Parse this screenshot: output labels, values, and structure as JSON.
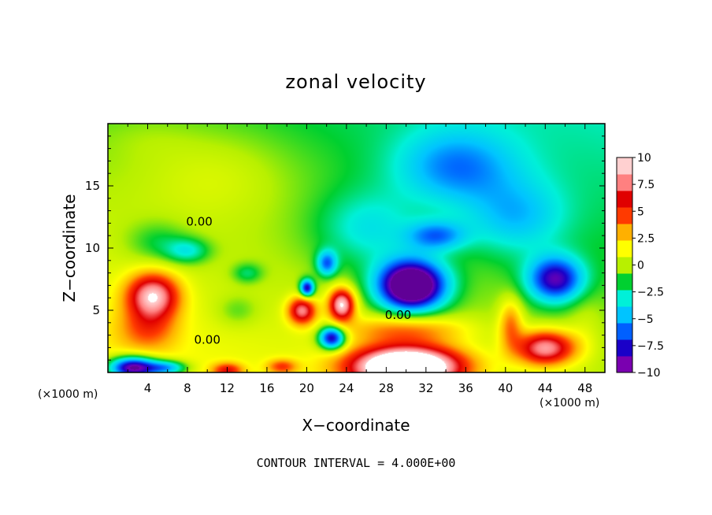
{
  "chart_data": {
    "type": "heatmap",
    "title": "zonal velocity",
    "xlabel": "X−coordinate",
    "ylabel": "Z−coordinate",
    "x_unit_left": "(×1000 m)",
    "x_unit_right": "(×1000 m)",
    "xlim": [
      0,
      50
    ],
    "ylim": [
      0,
      20
    ],
    "x_ticks": [
      4,
      8,
      12,
      16,
      20,
      24,
      28,
      32,
      36,
      40,
      44,
      48
    ],
    "x_tick_labels": [
      "4",
      "8",
      "12",
      "16",
      "20",
      "24",
      "28",
      "32",
      "36",
      "40",
      "44",
      "48"
    ],
    "y_ticks": [
      5,
      10,
      15
    ],
    "y_tick_labels": [
      "5",
      "10",
      "15"
    ],
    "colorbar": {
      "range": [
        -10,
        10
      ],
      "ticks": [
        10,
        7.5,
        5,
        2.5,
        0,
        -2.5,
        -5,
        -7.5,
        -10
      ],
      "tick_labels": [
        "10",
        "7.5",
        "5",
        "2.5",
        "0",
        "−2.5",
        "−5",
        "−7.5",
        "−10"
      ],
      "colors": [
        "#7a00b0",
        "#1a00c8",
        "#0060ff",
        "#00c4ff",
        "#00f0d8",
        "#00d030",
        "#b8f000",
        "#ffff00",
        "#ffb000",
        "#ff3a00",
        "#e00000",
        "#ff8080",
        "#ffd0d0"
      ]
    },
    "contour_labels": [
      {
        "text": "0.00",
        "x": 10,
        "y": 2.3
      },
      {
        "text": "0.00",
        "x": 9.2,
        "y": 11.8
      },
      {
        "text": "0.00",
        "x": 29.2,
        "y": 4.3
      }
    ],
    "note": "CONTOUR INTERVAL = 4.000E+00",
    "features": [
      {
        "x": 0,
        "y": 20,
        "v": -1
      },
      {
        "x": 50,
        "y": 20,
        "v": -3
      },
      {
        "x": 0,
        "y": 0,
        "v": 2
      },
      {
        "x": 50,
        "y": 0,
        "v": 0
      },
      {
        "x": 11,
        "y": 16,
        "v": 1.5,
        "sx": 8,
        "sy": 4
      },
      {
        "x": 4,
        "y": 19,
        "v": 0.5,
        "sx": 5,
        "sy": 2
      },
      {
        "x": 5,
        "y": 10.5,
        "v": -2,
        "sx": 3,
        "sy": 1.6
      },
      {
        "x": 8,
        "y": 9.8,
        "v": -3.5,
        "sx": 2.2,
        "sy": 1
      },
      {
        "x": 14,
        "y": 8,
        "v": -2.5,
        "sx": 1.5,
        "sy": 0.8
      },
      {
        "x": 26,
        "y": 11.5,
        "v": -3,
        "sx": 5,
        "sy": 3
      },
      {
        "x": 35,
        "y": 16.5,
        "v": -4.5,
        "sx": 6,
        "sy": 3
      },
      {
        "x": 41,
        "y": 12.5,
        "v": -3.5,
        "sx": 5,
        "sy": 3
      },
      {
        "x": 30.5,
        "y": 7,
        "v": -14,
        "sx": 3.4,
        "sy": 2
      },
      {
        "x": 45,
        "y": 7.5,
        "v": -8.5,
        "sx": 2.8,
        "sy": 1.8
      },
      {
        "x": 22,
        "y": 8.8,
        "v": -6,
        "sx": 1,
        "sy": 1
      },
      {
        "x": 20,
        "y": 6.8,
        "v": -9,
        "sx": 0.7,
        "sy": 0.7
      },
      {
        "x": 22.5,
        "y": 2.8,
        "v": -10,
        "sx": 1.3,
        "sy": 0.9
      },
      {
        "x": 19.5,
        "y": 5,
        "v": 8,
        "sx": 1.4,
        "sy": 1.1
      },
      {
        "x": 23.5,
        "y": 5.5,
        "v": 10,
        "sx": 1.3,
        "sy": 1.3
      },
      {
        "x": 4.5,
        "y": 6.2,
        "v": 9,
        "sx": 2.6,
        "sy": 1.8
      },
      {
        "x": 4,
        "y": 3.5,
        "v": 3.5,
        "sx": 3,
        "sy": 1.8
      },
      {
        "x": 2.5,
        "y": 0.4,
        "v": -12,
        "sx": 2.5,
        "sy": 0.9
      },
      {
        "x": 6,
        "y": 0.4,
        "v": -6,
        "sx": 2,
        "sy": 0.6
      },
      {
        "x": 12,
        "y": 0.2,
        "v": 5,
        "sx": 1.5,
        "sy": 0.6
      },
      {
        "x": 17.5,
        "y": 0.5,
        "v": 4,
        "sx": 1.5,
        "sy": 0.6
      },
      {
        "x": 30,
        "y": 0.5,
        "v": 16,
        "sx": 5.5,
        "sy": 1.6
      },
      {
        "x": 30,
        "y": 3.5,
        "v": 4,
        "sx": 6,
        "sy": 1.2
      },
      {
        "x": 44,
        "y": 2,
        "v": 9,
        "sx": 3,
        "sy": 1.4
      },
      {
        "x": 40.5,
        "y": 4,
        "v": 4,
        "sx": 1.2,
        "sy": 2
      },
      {
        "x": 13,
        "y": 5,
        "v": -1.5,
        "sx": 2,
        "sy": 1.2
      },
      {
        "x": 33,
        "y": 11,
        "v": -5,
        "sx": 3,
        "sy": 1.2
      },
      {
        "x": 48,
        "y": 4,
        "v": 1,
        "sx": 2,
        "sy": 3
      }
    ]
  }
}
